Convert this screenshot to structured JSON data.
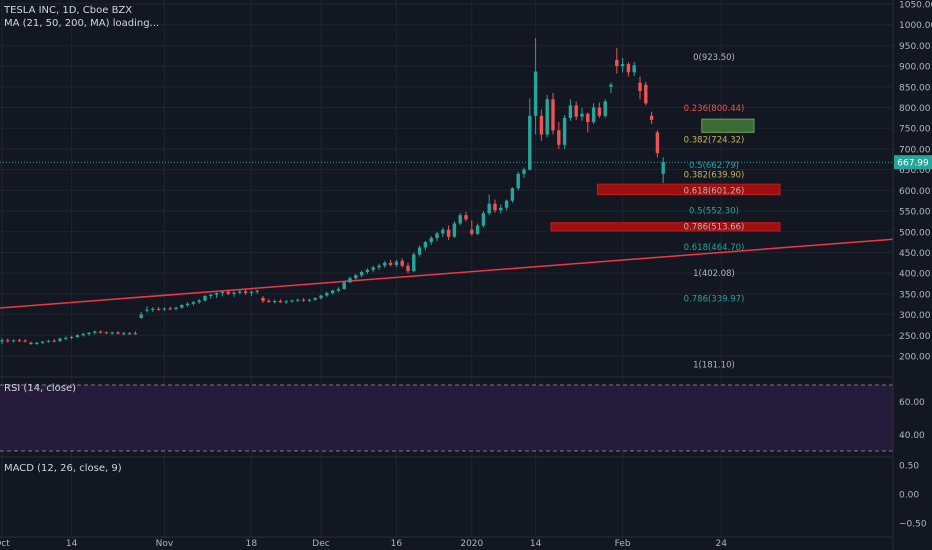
{
  "header": {
    "symbol_line": "TESLA INC, 1D, Cboe BZX",
    "indicator_line": "MA (21, 50, 200, MA) loading..."
  },
  "rsi": {
    "title": "RSI (14, close)",
    "ticks": [
      "60.00",
      "40.00"
    ],
    "values": [
      60,
      40
    ],
    "bands": [
      70,
      30
    ]
  },
  "macd": {
    "title": "MACD (12, 26, close, 9)",
    "ticks": [
      "0.50",
      "0.00",
      "−0.50"
    ],
    "values": [
      0.5,
      0,
      -0.5
    ]
  },
  "colors": {
    "background": "#131722",
    "grid": "#1f2430",
    "up": "#26a69a",
    "down": "#ef5350",
    "trendline": "#f23645",
    "fib_zone_red": "#9c1010",
    "fib_zone_green": "#3a6b35",
    "rsi_fill": "#241c3a",
    "current_price": "#26a69a"
  },
  "chart_data": {
    "type": "candlestick",
    "title": "TESLA INC, 1D, Cboe BZX",
    "ylim": [
      160,
      1050
    ],
    "y_ticks": [
      "1050.00",
      "1000.00",
      "950.00",
      "900.00",
      "850.00",
      "800.00",
      "750.00",
      "700.00",
      "650.00",
      "600.00",
      "550.00",
      "500.00",
      "450.00",
      "400.00",
      "350.00",
      "300.00",
      "250.00",
      "200.00"
    ],
    "y_tick_values": [
      1050,
      1000,
      950,
      900,
      850,
      800,
      750,
      700,
      650,
      600,
      550,
      500,
      450,
      400,
      350,
      300,
      250,
      200
    ],
    "x_ticks": [
      "Oct",
      "14",
      "Nov",
      "18",
      "Dec",
      "16",
      "2020",
      "14",
      "Feb",
      "24"
    ],
    "x_tick_index": [
      0,
      12,
      28,
      43,
      55,
      68,
      81,
      92,
      107,
      124
    ],
    "current_price": "667.99",
    "current_price_value": 667.99,
    "candles": [
      {
        "o": 235,
        "h": 243,
        "l": 228,
        "c": 238
      },
      {
        "o": 238,
        "h": 242,
        "l": 232,
        "c": 236
      },
      {
        "o": 236,
        "h": 240,
        "l": 233,
        "c": 238
      },
      {
        "o": 238,
        "h": 242,
        "l": 234,
        "c": 237
      },
      {
        "o": 237,
        "h": 241,
        "l": 233,
        "c": 236
      },
      {
        "o": 232,
        "h": 235,
        "l": 227,
        "c": 229
      },
      {
        "o": 229,
        "h": 234,
        "l": 227,
        "c": 232
      },
      {
        "o": 232,
        "h": 236,
        "l": 229,
        "c": 235
      },
      {
        "o": 235,
        "h": 239,
        "l": 232,
        "c": 237
      },
      {
        "o": 237,
        "h": 241,
        "l": 233,
        "c": 236
      },
      {
        "o": 236,
        "h": 244,
        "l": 234,
        "c": 242
      },
      {
        "o": 242,
        "h": 247,
        "l": 238,
        "c": 244
      },
      {
        "o": 244,
        "h": 249,
        "l": 240,
        "c": 246
      },
      {
        "o": 246,
        "h": 253,
        "l": 243,
        "c": 250
      },
      {
        "o": 250,
        "h": 256,
        "l": 247,
        "c": 253
      },
      {
        "o": 253,
        "h": 258,
        "l": 249,
        "c": 256
      },
      {
        "o": 256,
        "h": 262,
        "l": 252,
        "c": 259
      },
      {
        "o": 259,
        "h": 262,
        "l": 254,
        "c": 257
      },
      {
        "o": 257,
        "h": 260,
        "l": 253,
        "c": 255
      },
      {
        "o": 255,
        "h": 259,
        "l": 251,
        "c": 257
      },
      {
        "o": 257,
        "h": 260,
        "l": 252,
        "c": 254
      },
      {
        "o": 254,
        "h": 258,
        "l": 250,
        "c": 255
      },
      {
        "o": 255,
        "h": 258,
        "l": 251,
        "c": 253
      },
      {
        "o": 253,
        "h": 260,
        "l": 251,
        "c": 255
      },
      {
        "o": 292,
        "h": 306,
        "l": 290,
        "c": 300
      },
      {
        "o": 310,
        "h": 320,
        "l": 305,
        "c": 312
      },
      {
        "o": 312,
        "h": 318,
        "l": 306,
        "c": 314
      },
      {
        "o": 314,
        "h": 318,
        "l": 309,
        "c": 313
      },
      {
        "o": 313,
        "h": 317,
        "l": 309,
        "c": 315
      },
      {
        "o": 315,
        "h": 319,
        "l": 311,
        "c": 314
      },
      {
        "o": 314,
        "h": 318,
        "l": 310,
        "c": 317
      },
      {
        "o": 317,
        "h": 325,
        "l": 314,
        "c": 323
      },
      {
        "o": 323,
        "h": 330,
        "l": 318,
        "c": 326
      },
      {
        "o": 326,
        "h": 333,
        "l": 322,
        "c": 330
      },
      {
        "o": 330,
        "h": 338,
        "l": 326,
        "c": 334
      },
      {
        "o": 334,
        "h": 347,
        "l": 331,
        "c": 345
      },
      {
        "o": 345,
        "h": 350,
        "l": 338,
        "c": 348
      },
      {
        "o": 348,
        "h": 354,
        "l": 340,
        "c": 352
      },
      {
        "o": 352,
        "h": 358,
        "l": 344,
        "c": 355
      },
      {
        "o": 355,
        "h": 359,
        "l": 347,
        "c": 350
      },
      {
        "o": 350,
        "h": 356,
        "l": 343,
        "c": 353
      },
      {
        "o": 353,
        "h": 360,
        "l": 349,
        "c": 356
      },
      {
        "o": 356,
        "h": 362,
        "l": 348,
        "c": 352
      },
      {
        "o": 352,
        "h": 358,
        "l": 345,
        "c": 355
      },
      {
        "o": 355,
        "h": 360,
        "l": 350,
        "c": 358
      },
      {
        "o": 340,
        "h": 345,
        "l": 328,
        "c": 333
      },
      {
        "o": 333,
        "h": 338,
        "l": 328,
        "c": 331
      },
      {
        "o": 331,
        "h": 336,
        "l": 327,
        "c": 333
      },
      {
        "o": 333,
        "h": 337,
        "l": 328,
        "c": 330
      },
      {
        "o": 330,
        "h": 335,
        "l": 326,
        "c": 332
      },
      {
        "o": 332,
        "h": 336,
        "l": 329,
        "c": 334
      },
      {
        "o": 334,
        "h": 339,
        "l": 330,
        "c": 336
      },
      {
        "o": 336,
        "h": 340,
        "l": 331,
        "c": 334
      },
      {
        "o": 334,
        "h": 338,
        "l": 330,
        "c": 336
      },
      {
        "o": 336,
        "h": 342,
        "l": 333,
        "c": 340
      },
      {
        "o": 340,
        "h": 348,
        "l": 336,
        "c": 346
      },
      {
        "o": 346,
        "h": 355,
        "l": 343,
        "c": 352
      },
      {
        "o": 352,
        "h": 360,
        "l": 348,
        "c": 358
      },
      {
        "o": 358,
        "h": 366,
        "l": 354,
        "c": 362
      },
      {
        "o": 362,
        "h": 381,
        "l": 360,
        "c": 378
      },
      {
        "o": 378,
        "h": 392,
        "l": 376,
        "c": 388
      },
      {
        "o": 388,
        "h": 398,
        "l": 384,
        "c": 395
      },
      {
        "o": 395,
        "h": 406,
        "l": 390,
        "c": 403
      },
      {
        "o": 403,
        "h": 412,
        "l": 398,
        "c": 408
      },
      {
        "o": 408,
        "h": 418,
        "l": 402,
        "c": 414
      },
      {
        "o": 414,
        "h": 423,
        "l": 408,
        "c": 418
      },
      {
        "o": 418,
        "h": 430,
        "l": 413,
        "c": 425
      },
      {
        "o": 425,
        "h": 432,
        "l": 416,
        "c": 420
      },
      {
        "o": 420,
        "h": 432,
        "l": 415,
        "c": 428
      },
      {
        "o": 430,
        "h": 436,
        "l": 414,
        "c": 418
      },
      {
        "o": 418,
        "h": 425,
        "l": 400,
        "c": 405
      },
      {
        "o": 405,
        "h": 450,
        "l": 403,
        "c": 445
      },
      {
        "o": 445,
        "h": 467,
        "l": 440,
        "c": 462
      },
      {
        "o": 462,
        "h": 478,
        "l": 455,
        "c": 475
      },
      {
        "o": 475,
        "h": 490,
        "l": 468,
        "c": 485
      },
      {
        "o": 485,
        "h": 500,
        "l": 478,
        "c": 496
      },
      {
        "o": 496,
        "h": 510,
        "l": 488,
        "c": 505
      },
      {
        "o": 505,
        "h": 515,
        "l": 480,
        "c": 488
      },
      {
        "o": 488,
        "h": 525,
        "l": 485,
        "c": 520
      },
      {
        "o": 520,
        "h": 545,
        "l": 516,
        "c": 540
      },
      {
        "o": 540,
        "h": 548,
        "l": 525,
        "c": 530
      },
      {
        "o": 505,
        "h": 528,
        "l": 490,
        "c": 495
      },
      {
        "o": 495,
        "h": 520,
        "l": 492,
        "c": 515
      },
      {
        "o": 515,
        "h": 550,
        "l": 510,
        "c": 545
      },
      {
        "o": 545,
        "h": 590,
        "l": 540,
        "c": 568
      },
      {
        "o": 568,
        "h": 578,
        "l": 546,
        "c": 552
      },
      {
        "o": 552,
        "h": 566,
        "l": 544,
        "c": 558
      },
      {
        "o": 558,
        "h": 578,
        "l": 552,
        "c": 575
      },
      {
        "o": 575,
        "h": 608,
        "l": 570,
        "c": 605
      },
      {
        "o": 605,
        "h": 645,
        "l": 600,
        "c": 640
      },
      {
        "o": 640,
        "h": 655,
        "l": 630,
        "c": 650
      },
      {
        "o": 650,
        "h": 822,
        "l": 648,
        "c": 780
      },
      {
        "o": 780,
        "h": 968,
        "l": 735,
        "c": 887
      },
      {
        "o": 780,
        "h": 795,
        "l": 720,
        "c": 735
      },
      {
        "o": 735,
        "h": 830,
        "l": 728,
        "c": 820
      },
      {
        "o": 820,
        "h": 835,
        "l": 735,
        "c": 745
      },
      {
        "o": 745,
        "h": 765,
        "l": 700,
        "c": 710
      },
      {
        "o": 710,
        "h": 782,
        "l": 700,
        "c": 775
      },
      {
        "o": 775,
        "h": 820,
        "l": 768,
        "c": 805
      },
      {
        "o": 805,
        "h": 815,
        "l": 770,
        "c": 778
      },
      {
        "o": 778,
        "h": 800,
        "l": 768,
        "c": 785
      },
      {
        "o": 785,
        "h": 788,
        "l": 740,
        "c": 765
      },
      {
        "o": 765,
        "h": 810,
        "l": 760,
        "c": 800
      },
      {
        "o": 800,
        "h": 812,
        "l": 775,
        "c": 780
      },
      {
        "o": 780,
        "h": 820,
        "l": 775,
        "c": 815
      },
      {
        "o": 850,
        "h": 860,
        "l": 835,
        "c": 855
      },
      {
        "o": 915,
        "h": 944,
        "l": 882,
        "c": 900
      },
      {
        "o": 900,
        "h": 920,
        "l": 885,
        "c": 905
      },
      {
        "o": 905,
        "h": 910,
        "l": 875,
        "c": 885
      },
      {
        "o": 885,
        "h": 910,
        "l": 876,
        "c": 902
      },
      {
        "o": 860,
        "h": 875,
        "l": 820,
        "c": 840
      },
      {
        "o": 855,
        "h": 862,
        "l": 805,
        "c": 810
      },
      {
        "o": 780,
        "h": 790,
        "l": 760,
        "c": 770
      },
      {
        "o": 740,
        "h": 745,
        "l": 680,
        "c": 690
      },
      {
        "o": 640,
        "h": 680,
        "l": 618,
        "c": 668
      }
    ],
    "trendline": {
      "start": {
        "x": 0,
        "price": 316
      },
      "end": {
        "x": 137,
        "price": 482
      }
    },
    "fib_levels": [
      {
        "label": "0(923.50)",
        "value": 923.5,
        "color": "#b2b5be"
      },
      {
        "label": "0.236(800.44)",
        "value": 800.44,
        "color": "#ef5350"
      },
      {
        "label": "0.382(724.32)",
        "value": 724.32,
        "color": "#c7b35b"
      },
      {
        "label": "0.5(662.79)",
        "value": 662.79,
        "color": "#26a69a"
      },
      {
        "label": "0.382(639.90)",
        "value": 639.9,
        "color": "#c7b35b"
      },
      {
        "label": "0.618(601.26)",
        "value": 601.26,
        "color": "#b2b5be"
      },
      {
        "label": "0.5(552.30)",
        "value": 552.3,
        "color": "#26a69a"
      },
      {
        "label": "0.786(513.66)",
        "value": 513.66,
        "color": "#b2b5be"
      },
      {
        "label": "0.618(464.70)",
        "value": 464.7,
        "color": "#26a69a"
      },
      {
        "label": "1(402.08)",
        "value": 402.08,
        "color": "#b2b5be"
      },
      {
        "label": "0.786(339.97)",
        "value": 339.97,
        "color": "#26a69a"
      },
      {
        "label": "1(181.10)",
        "value": 181.1,
        "color": "#b2b5be"
      }
    ],
    "zones": [
      {
        "from": 590,
        "to": 615,
        "start_index": 103,
        "color": "red"
      },
      {
        "from": 502,
        "to": 522,
        "start_index": 95,
        "color": "red"
      },
      {
        "from": 740,
        "to": 772,
        "start_index": 121,
        "color": "green"
      }
    ]
  }
}
